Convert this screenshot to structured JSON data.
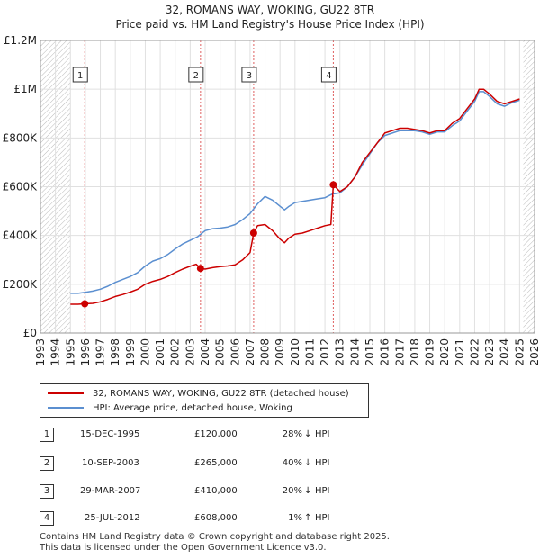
{
  "title_line1": "32, ROMANS WAY, WOKING, GU22 8TR",
  "title_line2": "Price paid vs. HM Land Registry's House Price Index (HPI)",
  "chart_data": {
    "type": "line",
    "xlim": [
      1993,
      2026
    ],
    "ylim": [
      0,
      1200000
    ],
    "y_ticks": [
      {
        "value": 0,
        "label": "£0"
      },
      {
        "value": 200000,
        "label": "£200K"
      },
      {
        "value": 400000,
        "label": "£400K"
      },
      {
        "value": 600000,
        "label": "£600K"
      },
      {
        "value": 800000,
        "label": "£800K"
      },
      {
        "value": 1000000,
        "label": "£1M"
      },
      {
        "value": 1200000,
        "label": "£1.2M"
      }
    ],
    "x_ticks": [
      1993,
      1994,
      1995,
      1996,
      1997,
      1998,
      1999,
      2000,
      2001,
      2002,
      2003,
      2004,
      2005,
      2006,
      2007,
      2008,
      2009,
      2010,
      2011,
      2012,
      2013,
      2014,
      2015,
      2016,
      2017,
      2018,
      2019,
      2020,
      2021,
      2022,
      2023,
      2024,
      2025,
      2026
    ],
    "hatched_ranges": [
      [
        1993,
        1995.0
      ],
      [
        2025.25,
        2026
      ]
    ],
    "series": [
      {
        "name": "32, ROMANS WAY, WOKING, GU22 8TR (detached house)",
        "color": "#cc0000",
        "x": [
          1995.0,
          1995.5,
          1995.96,
          1996.5,
          1997,
          1997.5,
          1998,
          1998.5,
          1999,
          1999.5,
          2000,
          2000.5,
          2001,
          2001.5,
          2002,
          2002.5,
          2003,
          2003.4,
          2003.69,
          2004,
          2004.5,
          2005,
          2005.5,
          2006,
          2006.5,
          2007.0,
          2007.24,
          2007.5,
          2008,
          2008.5,
          2009,
          2009.3,
          2009.6,
          2010,
          2010.5,
          2011,
          2011.5,
          2012,
          2012.4,
          2012.56,
          2013,
          2013.5,
          2014,
          2014.5,
          2015,
          2015.5,
          2016,
          2016.5,
          2017,
          2017.5,
          2018,
          2018.5,
          2019,
          2019.5,
          2020,
          2020.5,
          2021,
          2021.5,
          2022,
          2022.3,
          2022.6,
          2023,
          2023.5,
          2024,
          2024.5,
          2025
        ],
        "values": [
          118000,
          118000,
          120000,
          122000,
          128000,
          138000,
          150000,
          158000,
          168000,
          180000,
          200000,
          212000,
          220000,
          232000,
          248000,
          262000,
          274000,
          282000,
          265000,
          262000,
          268000,
          272000,
          275000,
          280000,
          300000,
          330000,
          410000,
          440000,
          445000,
          420000,
          385000,
          370000,
          390000,
          405000,
          410000,
          420000,
          430000,
          440000,
          445000,
          608000,
          580000,
          600000,
          640000,
          700000,
          740000,
          780000,
          820000,
          830000,
          840000,
          840000,
          835000,
          830000,
          820000,
          830000,
          830000,
          860000,
          880000,
          920000,
          960000,
          1000000,
          1000000,
          980000,
          950000,
          940000,
          950000,
          960000
        ]
      },
      {
        "name": "HPI: Average price, detached house, Woking",
        "color": "#5b8fd0",
        "x": [
          1995.0,
          1995.5,
          1996,
          1996.5,
          1997,
          1997.5,
          1998,
          1998.5,
          1999,
          1999.5,
          2000,
          2000.5,
          2001,
          2001.5,
          2002,
          2002.5,
          2003,
          2003.5,
          2004,
          2004.5,
          2005,
          2005.5,
          2006,
          2006.5,
          2007,
          2007.5,
          2008,
          2008.5,
          2009,
          2009.3,
          2009.6,
          2010,
          2010.5,
          2011,
          2011.5,
          2012,
          2012.5,
          2013,
          2013.5,
          2014,
          2014.5,
          2015,
          2015.5,
          2016,
          2016.5,
          2017,
          2017.5,
          2018,
          2018.5,
          2019,
          2019.5,
          2020,
          2020.5,
          2021,
          2021.5,
          2022,
          2022.3,
          2022.6,
          2023,
          2023.5,
          2024,
          2024.5,
          2025
        ],
        "values": [
          163000,
          163000,
          167000,
          172000,
          180000,
          192000,
          208000,
          220000,
          232000,
          248000,
          275000,
          295000,
          305000,
          322000,
          345000,
          365000,
          380000,
          395000,
          420000,
          428000,
          430000,
          435000,
          445000,
          465000,
          490000,
          530000,
          560000,
          545000,
          520000,
          505000,
          520000,
          535000,
          540000,
          545000,
          550000,
          555000,
          570000,
          575000,
          600000,
          640000,
          690000,
          735000,
          780000,
          810000,
          820000,
          830000,
          830000,
          830000,
          825000,
          815000,
          825000,
          825000,
          850000,
          870000,
          910000,
          950000,
          990000,
          990000,
          970000,
          940000,
          930000,
          945000,
          955000
        ]
      }
    ],
    "sales": [
      {
        "label": "1",
        "x": 1995.96,
        "value": 120000
      },
      {
        "label": "2",
        "x": 2003.69,
        "value": 265000
      },
      {
        "label": "3",
        "x": 2007.24,
        "value": 410000
      },
      {
        "label": "4",
        "x": 2012.56,
        "value": 608000
      }
    ]
  },
  "legend": {
    "property_label": "32, ROMANS WAY, WOKING, GU22 8TR (detached house)",
    "hpi_label": "HPI: Average price, detached house, Woking"
  },
  "transactions": [
    {
      "num": "1",
      "date": "15-DEC-1995",
      "price": "£120,000",
      "pct": "28%",
      "arrow": "↓",
      "hpi": "HPI"
    },
    {
      "num": "2",
      "date": "10-SEP-2003",
      "price": "£265,000",
      "pct": "40%",
      "arrow": "↓",
      "hpi": "HPI"
    },
    {
      "num": "3",
      "date": "29-MAR-2007",
      "price": "£410,000",
      "pct": "20%",
      "arrow": "↓",
      "hpi": "HPI"
    },
    {
      "num": "4",
      "date": "25-JUL-2012",
      "price": "£608,000",
      "pct": "1%",
      "arrow": "↑",
      "hpi": "HPI"
    }
  ],
  "footer_line1": "Contains HM Land Registry data © Crown copyright and database right 2025.",
  "footer_line2": "This data is licensed under the Open Government Licence v3.0."
}
